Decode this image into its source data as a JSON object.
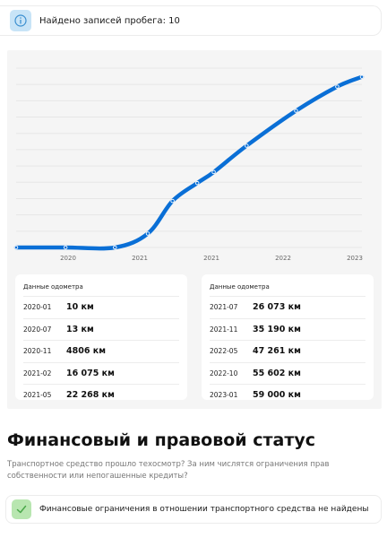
{
  "mileage_notice": {
    "icon": "info-icon",
    "text": "Найдено записей пробега: 10",
    "icon_bg": "#c8e4f7",
    "icon_color": "#3b8fd0"
  },
  "chart_data": {
    "type": "line",
    "x_tick_labels": [
      "2020",
      "2021",
      "2021",
      "2022",
      "2023"
    ],
    "series": [
      {
        "color": "#0a6fd6",
        "points": [
          {
            "x": "2019-07",
            "y": 10
          },
          {
            "x": "2020-01",
            "y": 10
          },
          {
            "x": "2020-07",
            "y": 13
          },
          {
            "x": "2020-11",
            "y": 4806
          },
          {
            "x": "2021-02",
            "y": 16075
          },
          {
            "x": "2021-05",
            "y": 22268
          },
          {
            "x": "2021-07",
            "y": 26073
          },
          {
            "x": "2021-11",
            "y": 35190
          },
          {
            "x": "2022-05",
            "y": 47261
          },
          {
            "x": "2022-10",
            "y": 55602
          },
          {
            "x": "2023-01",
            "y": 59000
          }
        ]
      }
    ],
    "ylim": [
      0,
      62000
    ],
    "grid": true,
    "legend": "none"
  },
  "odometer": {
    "left": {
      "title": "Данные одометра",
      "rows": [
        {
          "date": "2020-01",
          "value": "10 км"
        },
        {
          "date": "2020-07",
          "value": "13 км"
        },
        {
          "date": "2020-11",
          "value": "4806 км"
        },
        {
          "date": "2021-02",
          "value": "16 075 км"
        },
        {
          "date": "2021-05",
          "value": "22 268 км"
        }
      ]
    },
    "right": {
      "title": "Данные одометра",
      "rows": [
        {
          "date": "2021-07",
          "value": "26 073 км"
        },
        {
          "date": "2021-11",
          "value": "35 190 км"
        },
        {
          "date": "2022-05",
          "value": "47 261 км"
        },
        {
          "date": "2022-10",
          "value": "55 602 км"
        },
        {
          "date": "2023-01",
          "value": "59 000 км"
        }
      ]
    }
  },
  "finance": {
    "title": "Финансовый и правовой статус",
    "description": "Транспортное средство прошло техосмотр? За ним числятся ограничения прав собственности или непогашенные кредиты?",
    "result_icon": "check-icon",
    "result_text": "Финансовые ограничения в отношении транспортного средства не найдены",
    "result_icon_bg": "#b8e6b0",
    "result_icon_color": "#4aa84a"
  }
}
